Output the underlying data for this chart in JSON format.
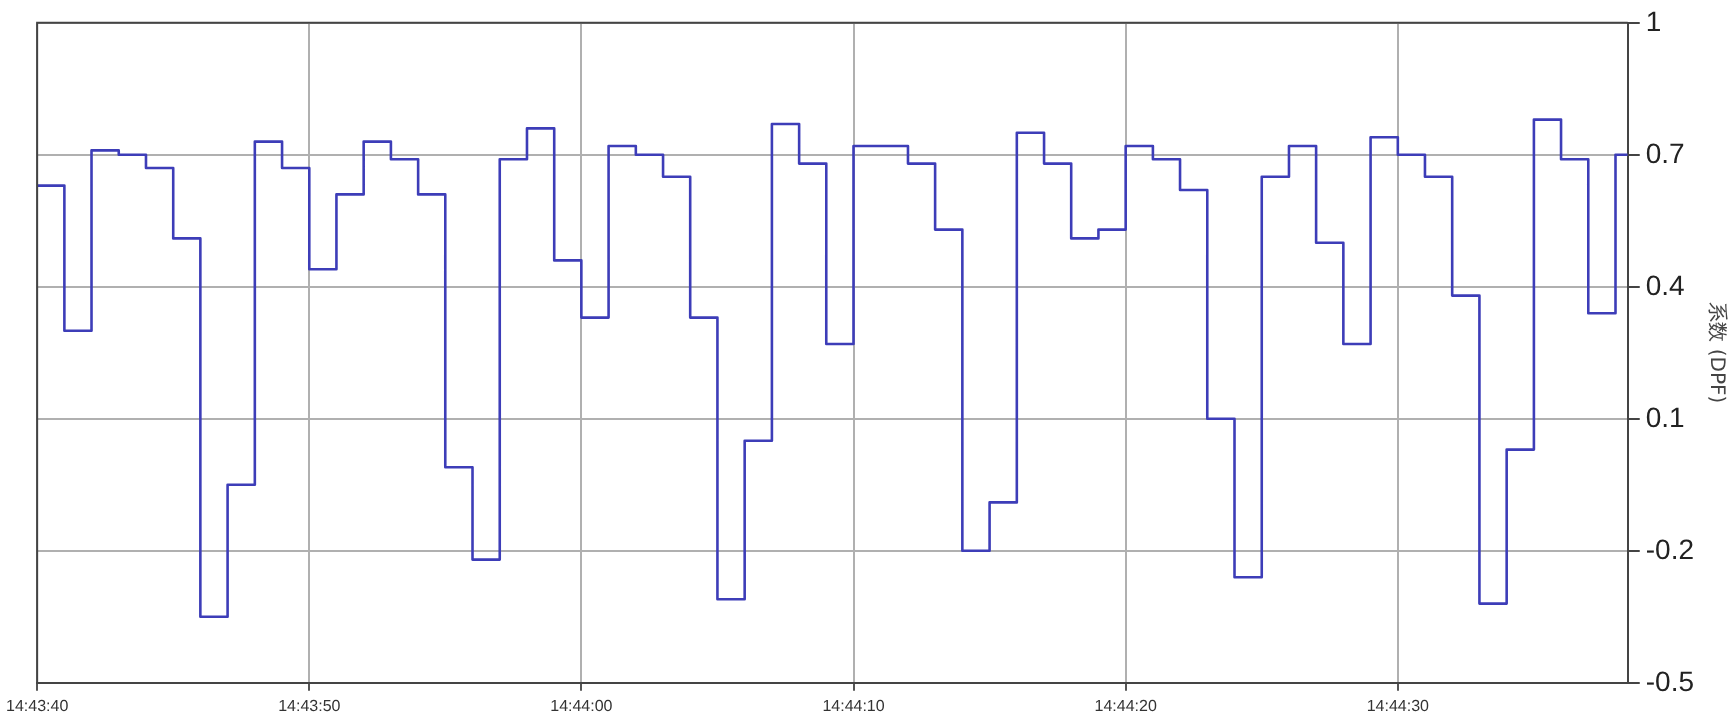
{
  "chart_data": {
    "type": "step",
    "ylabel": "系数 (DPF)",
    "color": "#3d3db8",
    "grid": true,
    "legend": false,
    "line_style": "solid",
    "marker": "none",
    "x": [
      14.727778,
      14.728056,
      14.728333,
      14.728611,
      14.728889,
      14.729167,
      14.729444,
      14.729722,
      14.73,
      14.730278,
      14.730556,
      14.730833,
      14.731111,
      14.731389,
      14.731667,
      14.731944,
      14.732222,
      14.7325,
      14.732778,
      14.733056,
      14.733333,
      14.733611,
      14.733889,
      14.734167,
      14.734444,
      14.734722,
      14.735,
      14.735278,
      14.735556,
      14.735833,
      14.736111,
      14.736389,
      14.736667,
      14.736944,
      14.737222,
      14.7375,
      14.737778,
      14.738056,
      14.738333,
      14.738611,
      14.738889,
      14.739167,
      14.739444,
      14.739722,
      14.74,
      14.740278,
      14.740556,
      14.740833,
      14.741111,
      14.741389,
      14.741667,
      14.741944,
      14.742222,
      14.7425,
      14.742778,
      14.743056,
      14.743333,
      14.743611,
      14.743889,
      14.744014
    ],
    "values": [
      0.63,
      0.3,
      0.71,
      0.7,
      0.67,
      0.51,
      -0.35,
      -0.05,
      0.73,
      0.67,
      0.44,
      0.61,
      0.73,
      0.69,
      0.61,
      -0.01,
      -0.22,
      0.69,
      0.76,
      0.46,
      0.33,
      0.72,
      0.7,
      0.65,
      0.33,
      -0.31,
      0.05,
      0.77,
      0.68,
      0.27,
      0.72,
      0.72,
      0.68,
      0.53,
      -0.2,
      -0.09,
      0.75,
      0.68,
      0.51,
      0.53,
      0.72,
      0.69,
      0.62,
      0.1,
      -0.26,
      0.65,
      0.72,
      0.5,
      0.27,
      0.74,
      0.7,
      0.65,
      0.38,
      -0.32,
      0.03,
      0.78,
      0.69,
      0.34,
      0.7,
      0.7
    ],
    "xlim": [
      14.727778,
      14.744014
    ],
    "xticks": [
      {
        "value": 14.727778,
        "label": "14:43:40"
      },
      {
        "value": 14.730556,
        "label": "14:43:50"
      },
      {
        "value": 14.733333,
        "label": "14:44:00"
      },
      {
        "value": 14.736111,
        "label": "14:44:10"
      },
      {
        "value": 14.738889,
        "label": "14:44:20"
      },
      {
        "value": 14.741667,
        "label": "14:44:30"
      }
    ],
    "ylim": [
      -0.5,
      1
    ],
    "yticks": [
      -0.5,
      -0.2,
      0.1,
      0.4,
      0.7,
      1
    ]
  }
}
